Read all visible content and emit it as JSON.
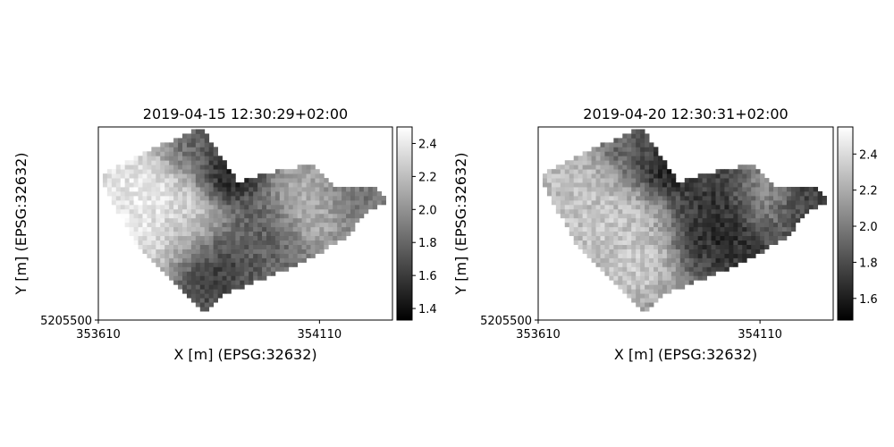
{
  "chart_data": [
    {
      "type": "heatmap",
      "title": "2019-04-15 12:30:29+02:00",
      "xlabel": "X [m] (EPSG:32632)",
      "ylabel": "Y [m] (EPSG:32632)",
      "x_ticks": [
        353610,
        354110
      ],
      "x_tick_labels": [
        "353610",
        "354110"
      ],
      "y_ticks": [
        5205500
      ],
      "y_tick_labels": [
        "5205500"
      ],
      "xlim": [
        353610,
        354275
      ],
      "ylim": [
        5205500,
        5205935
      ],
      "colormap": "gray",
      "colorbar": {
        "range": [
          1.33,
          2.5
        ],
        "ticks": [
          1.4,
          1.6,
          1.8,
          2.0,
          2.2,
          2.4
        ],
        "tick_labels": [
          "1.4",
          "1.6",
          "1.8",
          "2.0",
          "2.2",
          "2.4"
        ]
      },
      "field": {
        "polygon": [
          [
            353615,
            5205820
          ],
          [
            353640,
            5205840
          ],
          [
            353720,
            5205880
          ],
          [
            353800,
            5205915
          ],
          [
            353845,
            5205935
          ],
          [
            353925,
            5205810
          ],
          [
            354025,
            5205840
          ],
          [
            354100,
            5205850
          ],
          [
            354145,
            5205800
          ],
          [
            354235,
            5205805
          ],
          [
            354265,
            5205765
          ],
          [
            354210,
            5205740
          ],
          [
            354180,
            5205690
          ],
          [
            354070,
            5205630
          ],
          [
            353990,
            5205595
          ],
          [
            353900,
            5205560
          ],
          [
            353850,
            5205510
          ],
          [
            353800,
            5205570
          ],
          [
            353770,
            5205600
          ],
          [
            353700,
            5205660
          ]
        ],
        "blobs": [
          {
            "x": 353900,
            "y": 5205830,
            "r": 55,
            "v": 1.35
          },
          {
            "x": 353830,
            "y": 5205890,
            "r": 70,
            "v": 1.75
          },
          {
            "x": 353740,
            "y": 5205745,
            "r": 110,
            "v": 2.5
          },
          {
            "x": 353660,
            "y": 5205820,
            "r": 70,
            "v": 2.4
          },
          {
            "x": 353980,
            "y": 5205700,
            "r": 70,
            "v": 1.75
          },
          {
            "x": 353860,
            "y": 5205620,
            "r": 70,
            "v": 1.55
          },
          {
            "x": 354090,
            "y": 5205760,
            "r": 70,
            "v": 2.2
          },
          {
            "x": 354180,
            "y": 5205780,
            "r": 60,
            "v": 1.85
          },
          {
            "x": 353800,
            "y": 5205700,
            "r": 60,
            "v": 2.15
          }
        ],
        "base": 1.9
      }
    },
    {
      "type": "heatmap",
      "title": "2019-04-20 12:30:31+02:00",
      "xlabel": "X [m] (EPSG:32632)",
      "ylabel": "Y [m] (EPSG:32632)",
      "x_ticks": [
        353610,
        354110
      ],
      "x_tick_labels": [
        "353610",
        "354110"
      ],
      "y_ticks": [
        5205500
      ],
      "y_tick_labels": [
        "5205500"
      ],
      "xlim": [
        353610,
        354275
      ],
      "ylim": [
        5205500,
        5205935
      ],
      "colormap": "gray",
      "colorbar": {
        "range": [
          1.48,
          2.55
        ],
        "ticks": [
          1.6,
          1.8,
          2.0,
          2.2,
          2.4
        ],
        "tick_labels": [
          "1.6",
          "1.8",
          "2.0",
          "2.2",
          "2.4"
        ]
      },
      "field": {
        "polygon": [
          [
            353615,
            5205820
          ],
          [
            353640,
            5205840
          ],
          [
            353720,
            5205880
          ],
          [
            353800,
            5205915
          ],
          [
            353845,
            5205935
          ],
          [
            353925,
            5205810
          ],
          [
            354025,
            5205840
          ],
          [
            354100,
            5205850
          ],
          [
            354145,
            5205800
          ],
          [
            354235,
            5205805
          ],
          [
            354265,
            5205765
          ],
          [
            354210,
            5205740
          ],
          [
            354180,
            5205690
          ],
          [
            354070,
            5205630
          ],
          [
            353990,
            5205595
          ],
          [
            353900,
            5205560
          ],
          [
            353850,
            5205510
          ],
          [
            353800,
            5205570
          ],
          [
            353770,
            5205600
          ],
          [
            353700,
            5205660
          ]
        ],
        "blobs": [
          {
            "x": 353890,
            "y": 5205840,
            "r": 50,
            "v": 1.5
          },
          {
            "x": 353830,
            "y": 5205890,
            "r": 70,
            "v": 1.85
          },
          {
            "x": 353750,
            "y": 5205720,
            "r": 110,
            "v": 2.35
          },
          {
            "x": 353660,
            "y": 5205820,
            "r": 70,
            "v": 2.3
          },
          {
            "x": 354040,
            "y": 5205720,
            "r": 90,
            "v": 1.6
          },
          {
            "x": 353830,
            "y": 5205620,
            "r": 60,
            "v": 2.35
          },
          {
            "x": 354120,
            "y": 5205770,
            "r": 60,
            "v": 2.2
          },
          {
            "x": 354200,
            "y": 5205760,
            "r": 60,
            "v": 1.7
          }
        ],
        "base": 2.0
      }
    }
  ]
}
